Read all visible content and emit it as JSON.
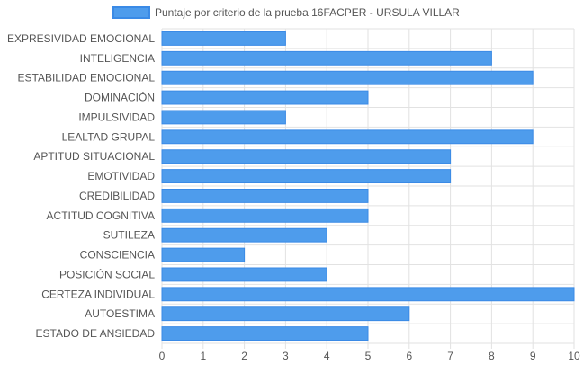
{
  "colors": {
    "bar_fill": "#4e9cec",
    "bar_stroke": "#3a8ae6",
    "grid": "#e2e2e2",
    "text": "#555555"
  },
  "chart_data": {
    "type": "bar",
    "orientation": "horizontal",
    "legend_position": "top",
    "grid": true,
    "series": [
      {
        "name": "Puntaje por criterio de la prueba 16FACPER - URSULA VILLAR",
        "values": [
          3,
          8,
          9,
          5,
          3,
          9,
          7,
          7,
          5,
          5,
          4,
          2,
          4,
          10,
          6,
          5
        ]
      }
    ],
    "categories": [
      "EXPRESIVIDAD EMOCIONAL",
      "INTELIGENCIA",
      "ESTABILIDAD EMOCIONAL",
      "DOMINACIÓN",
      "IMPULSIVIDAD",
      "LEALTAD GRUPAL",
      "APTITUD SITUACIONAL",
      "EMOTIVIDAD",
      "CREDIBILIDAD",
      "ACTITUD COGNITIVA",
      "SUTILEZA",
      "CONSCIENCIA",
      "POSICIÓN SOCIAL",
      "CERTEZA INDIVIDUAL",
      "AUTOESTIMA",
      "ESTADO DE ANSIEDAD"
    ],
    "xlim": [
      0,
      10
    ],
    "x_ticks": [
      "0",
      "1",
      "2",
      "3",
      "4",
      "5",
      "6",
      "7",
      "8",
      "9",
      "10"
    ]
  }
}
